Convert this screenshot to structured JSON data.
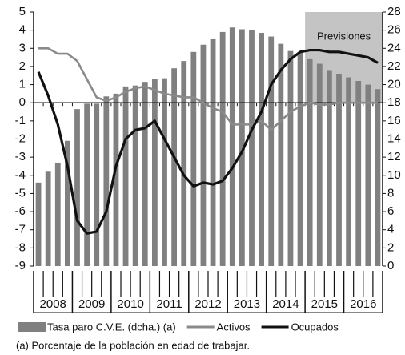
{
  "chart_data": {
    "type": "bar-line",
    "years": [
      "2008",
      "2009",
      "2010",
      "2011",
      "2012",
      "2013",
      "2014",
      "2015",
      "2016"
    ],
    "quarters_per_year": 4,
    "forecast": {
      "label": "Previsiones",
      "from": "2015",
      "color": "#c4c4c4"
    },
    "series": [
      {
        "name": "Tasa paro C.V.E. (dcha.) (a)",
        "kind": "bar",
        "axis": "y2",
        "color": "#808080",
        "values": [
          9.2,
          10.4,
          11.4,
          13.8,
          17.3,
          17.9,
          17.9,
          18.7,
          19.0,
          19.8,
          19.9,
          20.3,
          20.6,
          20.7,
          21.8,
          22.6,
          23.6,
          24.4,
          25.0,
          25.8,
          26.3,
          26.1,
          26.0,
          25.7,
          25.3,
          24.5,
          23.7,
          23.5,
          22.8,
          22.3,
          21.6,
          21.2,
          20.8,
          20.4,
          20.0,
          19.5
        ]
      },
      {
        "name": "Activos",
        "kind": "line",
        "color": "#8a8a8a",
        "values": [
          3.0,
          3.0,
          2.7,
          2.7,
          2.3,
          1.3,
          0.3,
          0.1,
          0.3,
          0.6,
          0.8,
          0.9,
          0.7,
          0.5,
          0.4,
          0.3,
          0.3,
          0.0,
          -0.3,
          -0.5,
          -1.2,
          -1.2,
          -1.2,
          -1.0,
          -1.5,
          -1.0,
          -0.5,
          -0.2,
          0.0,
          -0.1,
          -0.1,
          0.0,
          0.0,
          0.0,
          0.0,
          0.0
        ]
      },
      {
        "name": "Ocupados",
        "kind": "line",
        "color": "#111111",
        "values": [
          1.7,
          0.4,
          -1.2,
          -3.5,
          -6.5,
          -7.2,
          -7.1,
          -6.0,
          -3.5,
          -2.0,
          -1.5,
          -1.4,
          -1.0,
          -2.0,
          -3.0,
          -4.0,
          -4.6,
          -4.4,
          -4.5,
          -4.3,
          -3.6,
          -2.7,
          -1.5,
          -0.5,
          1.0,
          1.8,
          2.4,
          2.8,
          2.9,
          2.9,
          2.8,
          2.8,
          2.7,
          2.6,
          2.5,
          2.2
        ]
      }
    ],
    "ylim": [
      -9,
      5
    ],
    "yticks": [
      -9,
      -8,
      -7,
      -6,
      -5,
      -4,
      -3,
      -2,
      -1,
      0,
      1,
      2,
      3,
      4,
      5
    ],
    "y2lim": [
      0,
      28
    ],
    "y2ticks": [
      0,
      2,
      4,
      6,
      8,
      10,
      12,
      14,
      16,
      18,
      20,
      22,
      24,
      26,
      28
    ],
    "footnote": "(a) Porcentaje de la población en edad de trabajar."
  }
}
